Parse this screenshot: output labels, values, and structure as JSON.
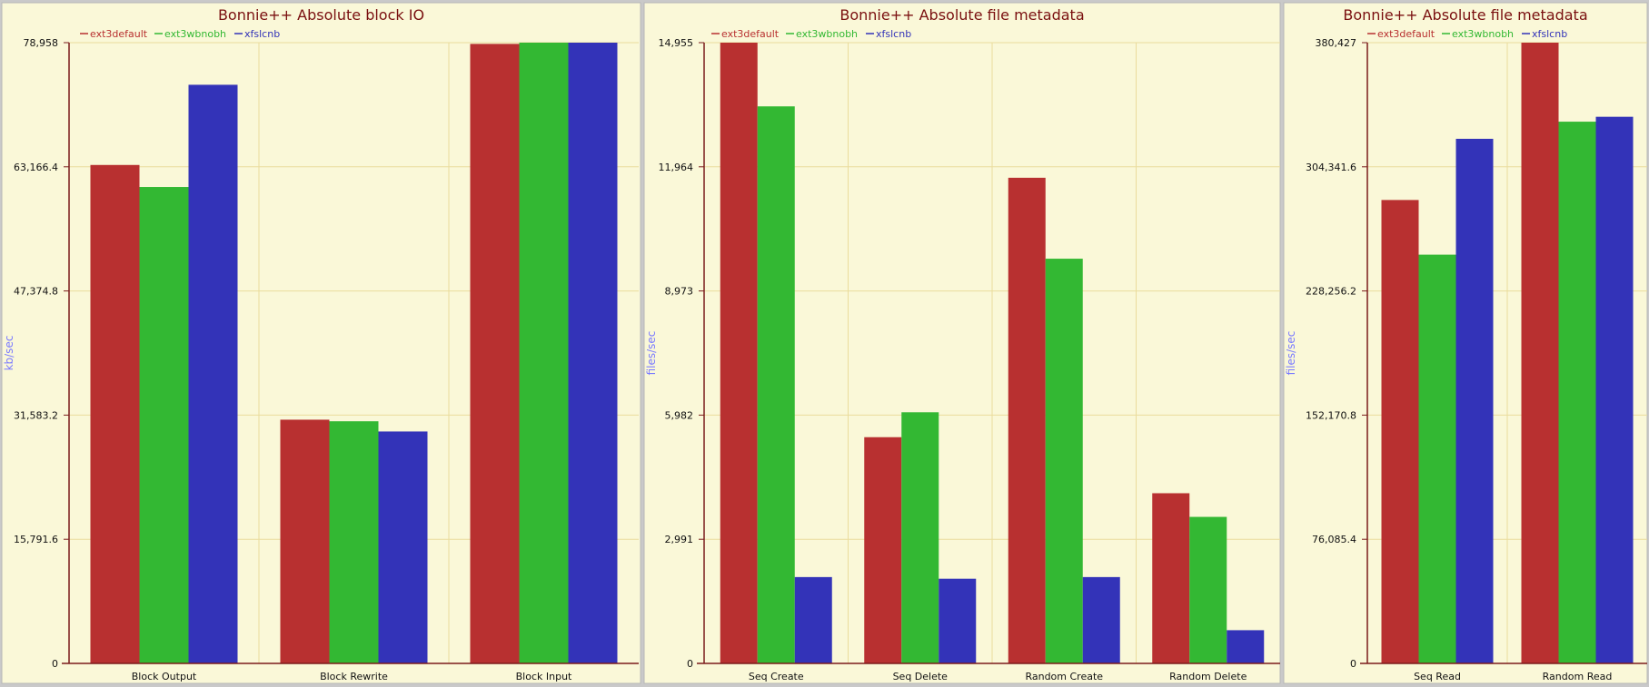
{
  "colors": {
    "ext3default": "#b83030",
    "ext3wbnobh": "#33b833",
    "xfslcnb": "#3333b8"
  },
  "chart_data": [
    {
      "type": "bar",
      "title": "Bonnie++ Absolute block IO",
      "ylabel": "kb/sec",
      "xlabel": "",
      "ylim": [
        0,
        78958
      ],
      "yticks": [
        "0",
        "15,791.6",
        "31,583.2",
        "47,374.8",
        "63,166.4",
        "78,958"
      ],
      "categories": [
        "Block Output",
        "Block Rewrite",
        "Block Input"
      ],
      "legend": "top-left",
      "grid": true,
      "series": [
        {
          "name": "ext3default",
          "values": [
            63400,
            31000,
            78800
          ]
        },
        {
          "name": "ext3wbnobh",
          "values": [
            60600,
            30800,
            78958
          ]
        },
        {
          "name": "xfslcnb",
          "values": [
            73600,
            29500,
            78958
          ]
        }
      ]
    },
    {
      "type": "bar",
      "title": "Bonnie++ Absolute file metadata",
      "ylabel": "files/sec",
      "xlabel": "",
      "ylim": [
        0,
        14955
      ],
      "yticks": [
        "0",
        "2,991",
        "5,982",
        "8,973",
        "11,964",
        "14,955"
      ],
      "categories": [
        "Seq Create",
        "Seq Delete",
        "Random Create",
        "Random Delete"
      ],
      "legend": "top-left",
      "grid": true,
      "series": [
        {
          "name": "ext3default",
          "values": [
            14955,
            5450,
            11700,
            4100
          ]
        },
        {
          "name": "ext3wbnobh",
          "values": [
            13420,
            6050,
            9750,
            3530
          ]
        },
        {
          "name": "xfslcnb",
          "values": [
            2080,
            2040,
            2080,
            800
          ]
        }
      ]
    },
    {
      "type": "bar",
      "title": "Bonnie++ Absolute file metadata",
      "ylabel": "files/sec",
      "xlabel": "",
      "ylim": [
        0,
        380427
      ],
      "yticks": [
        "0",
        "76,085.4",
        "152,170.8",
        "228,256.2",
        "304,341.6",
        "380,427"
      ],
      "categories": [
        "Seq Read",
        "Random Read"
      ],
      "legend": "top-left",
      "grid": true,
      "series": [
        {
          "name": "ext3default",
          "values": [
            284000,
            380427
          ]
        },
        {
          "name": "ext3wbnobh",
          "values": [
            250500,
            332000
          ]
        },
        {
          "name": "xfslcnb",
          "values": [
            321500,
            335000
          ]
        }
      ]
    }
  ]
}
